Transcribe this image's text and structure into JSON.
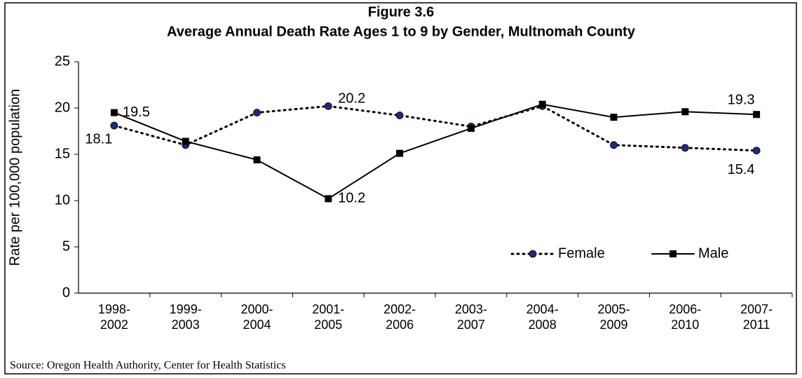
{
  "chart_data": {
    "type": "line",
    "title": "Figure 3.6",
    "subtitle": "Average Annual Death Rate Ages 1 to 9 by Gender, Multnomah County",
    "y_label": "Rate per 100,000 population",
    "source": "Source: Oregon Health Authority, Center for Health Statistics",
    "categories": [
      "1998-2002",
      "1999-2003",
      "2000-2004",
      "2001-2005",
      "2002-2006",
      "2003-2007",
      "2004-2008",
      "2005-2009",
      "2006-2010",
      "2007-2011"
    ],
    "series": [
      {
        "name": "Female",
        "color": "#1f2a78",
        "line_style": "dotted",
        "marker": "circle",
        "values": [
          18.1,
          16.0,
          19.5,
          20.2,
          19.2,
          18.0,
          20.2,
          16.0,
          15.7,
          15.4
        ],
        "value_labels": [
          "18.1",
          null,
          null,
          "20.2",
          null,
          null,
          null,
          null,
          null,
          "15.4"
        ]
      },
      {
        "name": "Male",
        "color": "#000000",
        "line_style": "solid",
        "marker": "square",
        "values": [
          19.5,
          16.4,
          14.4,
          10.2,
          15.1,
          17.8,
          20.4,
          19.0,
          19.6,
          19.3
        ],
        "value_labels": [
          "19.5",
          null,
          null,
          "10.2",
          null,
          null,
          null,
          null,
          null,
          "19.3"
        ]
      }
    ],
    "ylim": [
      0,
      25
    ],
    "yticks": [
      0,
      5,
      10,
      15,
      20,
      25
    ],
    "grid": false,
    "legend": "lower right"
  }
}
